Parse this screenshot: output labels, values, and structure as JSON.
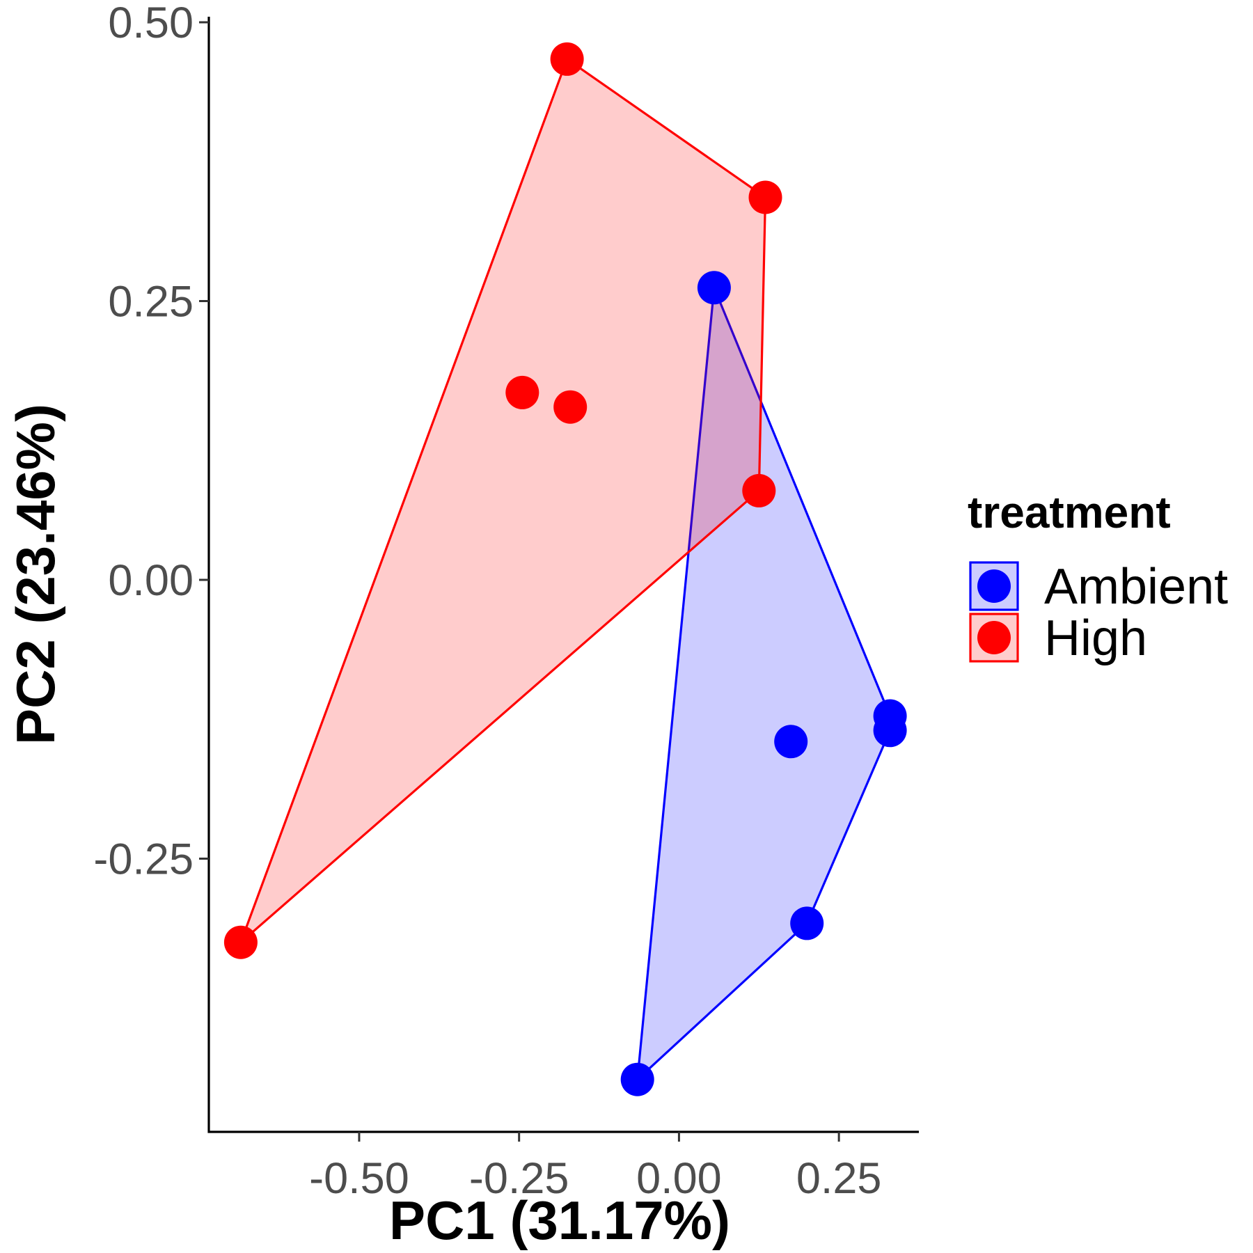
{
  "chart_data": {
    "type": "scatter",
    "title": "",
    "xlabel": "PC1 (31.17%)",
    "ylabel": "PC2 (23.46%)",
    "xlim": [
      -0.735,
      0.375
    ],
    "ylim": [
      -0.495,
      0.505
    ],
    "xticks": [
      -0.5,
      -0.25,
      0.0,
      0.25
    ],
    "xtick_labels": [
      "-0.50",
      "-0.25",
      "0.00",
      "0.25"
    ],
    "yticks": [
      -0.25,
      0.0,
      0.25,
      0.5
    ],
    "ytick_labels": [
      "-0.25",
      "0.00",
      "0.25",
      "0.50"
    ],
    "grid": false,
    "legend": {
      "title": "treatment",
      "position": "right"
    },
    "series": [
      {
        "name": "Ambient",
        "color": "#0000ff",
        "hull_fill": "#ccccff",
        "points": [
          {
            "x": 0.055,
            "y": 0.262
          },
          {
            "x": 0.175,
            "y": -0.145
          },
          {
            "x": 0.33,
            "y": -0.122
          },
          {
            "x": 0.33,
            "y": -0.135
          },
          {
            "x": 0.2,
            "y": -0.308
          },
          {
            "x": -0.065,
            "y": -0.448
          }
        ],
        "hull": [
          {
            "x": 0.055,
            "y": 0.262
          },
          {
            "x": 0.33,
            "y": -0.122
          },
          {
            "x": 0.33,
            "y": -0.135
          },
          {
            "x": 0.2,
            "y": -0.308
          },
          {
            "x": -0.065,
            "y": -0.448
          }
        ]
      },
      {
        "name": "High",
        "color": "#ff0000",
        "hull_fill": "#ffcccc",
        "points": [
          {
            "x": -0.175,
            "y": 0.467
          },
          {
            "x": 0.135,
            "y": 0.343
          },
          {
            "x": -0.245,
            "y": 0.168
          },
          {
            "x": -0.17,
            "y": 0.155
          },
          {
            "x": 0.125,
            "y": 0.08
          },
          {
            "x": -0.685,
            "y": -0.325
          }
        ],
        "hull": [
          {
            "x": -0.175,
            "y": 0.467
          },
          {
            "x": 0.135,
            "y": 0.343
          },
          {
            "x": 0.125,
            "y": 0.08
          },
          {
            "x": -0.685,
            "y": -0.325
          }
        ]
      }
    ]
  }
}
